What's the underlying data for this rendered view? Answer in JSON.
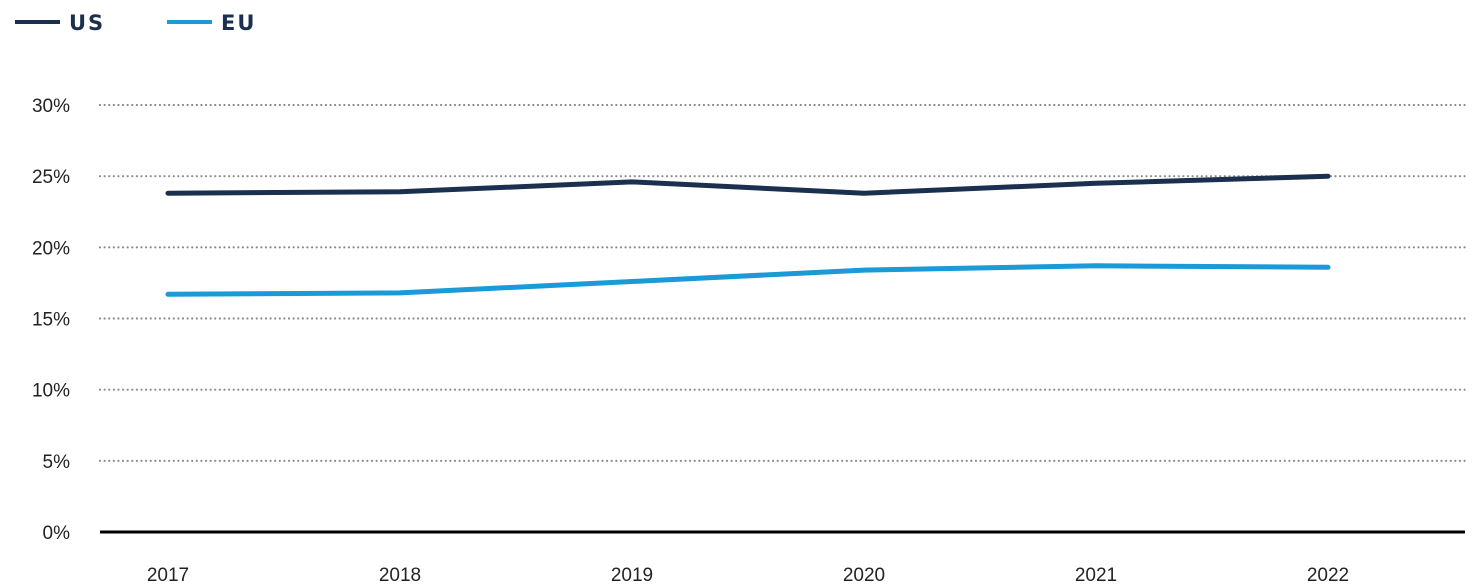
{
  "chart_data": {
    "type": "line",
    "x": [
      "2017",
      "2018",
      "2019",
      "2020",
      "2021",
      "2022"
    ],
    "series": [
      {
        "name": "US",
        "color": "#1b2f4e",
        "values": [
          23.8,
          23.9,
          24.6,
          23.8,
          24.5,
          25.0
        ]
      },
      {
        "name": "EU",
        "color": "#1a9ad6",
        "values": [
          16.7,
          16.8,
          17.6,
          18.4,
          18.7,
          18.6
        ]
      }
    ],
    "y_ticks": [
      0,
      5,
      10,
      15,
      20,
      25,
      30
    ],
    "y_tick_labels": [
      "0%",
      "5%",
      "10%",
      "15%",
      "20%",
      "25%",
      "30%"
    ],
    "ylim": [
      0,
      30
    ],
    "grid": "dotted horizontal",
    "legend_position": "top-left",
    "title": "",
    "xlabel": "",
    "ylabel": ""
  }
}
